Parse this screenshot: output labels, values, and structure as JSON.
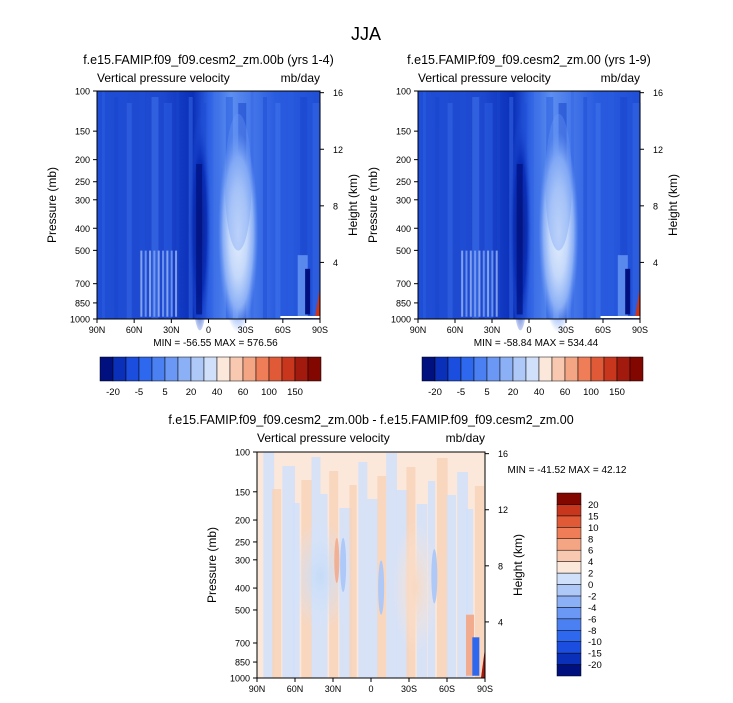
{
  "figure": {
    "title": "JJA"
  },
  "chart_data": [
    {
      "type": "heatmap",
      "title": "f.e15.FAMIP.f09_f09.cesm2_zm.00b (yrs 1-4)",
      "subtitle_left": "Vertical pressure velocity",
      "subtitle_right": "mb/day",
      "ylabel": "Pressure (mb)",
      "ylabel_right": "Height (km)",
      "x_tick_labels": [
        "90N",
        "60N",
        "30N",
        "0",
        "30S",
        "60S",
        "90S"
      ],
      "y_tick_labels": [
        "100",
        "150",
        "200",
        "250",
        "300",
        "400",
        "500",
        "700",
        "850",
        "1000"
      ],
      "y_ticks": [
        100,
        150,
        200,
        250,
        300,
        400,
        500,
        700,
        850,
        1000
      ],
      "ylim": [
        1000,
        100
      ],
      "xlim": [
        90,
        -90
      ],
      "y_scale": "log",
      "right_axis_ticks": [
        4,
        8,
        12,
        16
      ],
      "right_axis_labels": [
        "4",
        "8",
        "12",
        "16"
      ],
      "stats": "MIN = -56.55  MAX = 576.56",
      "colorbar": {
        "orientation": "horizontal",
        "labels": [
          "-20",
          "-5",
          "5",
          "20",
          "40",
          "60",
          "100",
          "150"
        ],
        "colors": [
          "#00107f",
          "#0a2fb8",
          "#1b4ede",
          "#2e68ee",
          "#4a80f2",
          "#6a98f4",
          "#8cb0f6",
          "#aec8f8",
          "#d0e0fb",
          "#fbe8db",
          "#f8c9b0",
          "#f4a583",
          "#ef7d58",
          "#e05a38",
          "#c7361d",
          "#a21a0e",
          "#820700"
        ]
      }
    },
    {
      "type": "heatmap",
      "title": "f.e15.FAMIP.f09_f09.cesm2_zm.00 (yrs 1-9)",
      "subtitle_left": "Vertical pressure velocity",
      "subtitle_right": "mb/day",
      "ylabel": "Pressure (mb)",
      "ylabel_right": "Height (km)",
      "x_tick_labels": [
        "90N",
        "60N",
        "30N",
        "0",
        "30S",
        "60S",
        "90S"
      ],
      "y_tick_labels": [
        "100",
        "150",
        "200",
        "250",
        "300",
        "400",
        "500",
        "700",
        "850",
        "1000"
      ],
      "y_ticks": [
        100,
        150,
        200,
        250,
        300,
        400,
        500,
        700,
        850,
        1000
      ],
      "ylim": [
        1000,
        100
      ],
      "xlim": [
        90,
        -90
      ],
      "y_scale": "log",
      "right_axis_ticks": [
        4,
        8,
        12,
        16
      ],
      "right_axis_labels": [
        "4",
        "8",
        "12",
        "16"
      ],
      "stats": "MIN = -58.84  MAX = 534.44",
      "colorbar": {
        "orientation": "horizontal",
        "labels": [
          "-20",
          "-5",
          "5",
          "20",
          "40",
          "60",
          "100",
          "150"
        ],
        "colors": [
          "#00107f",
          "#0a2fb8",
          "#1b4ede",
          "#2e68ee",
          "#4a80f2",
          "#6a98f4",
          "#8cb0f6",
          "#aec8f8",
          "#d0e0fb",
          "#fbe8db",
          "#f8c9b0",
          "#f4a583",
          "#ef7d58",
          "#e05a38",
          "#c7361d",
          "#a21a0e",
          "#820700"
        ]
      }
    },
    {
      "type": "heatmap",
      "title": "f.e15.FAMIP.f09_f09.cesm2_zm.00b - f.e15.FAMIP.f09_f09.cesm2_zm.00",
      "subtitle_left": "Vertical pressure velocity",
      "subtitle_right": "mb/day",
      "ylabel": "Pressure (mb)",
      "ylabel_right": "Height (km)",
      "x_tick_labels": [
        "90N",
        "60N",
        "30N",
        "0",
        "30S",
        "60S",
        "90S"
      ],
      "y_tick_labels": [
        "100",
        "150",
        "200",
        "250",
        "300",
        "400",
        "500",
        "700",
        "850",
        "1000"
      ],
      "y_ticks": [
        100,
        150,
        200,
        250,
        300,
        400,
        500,
        700,
        850,
        1000
      ],
      "ylim": [
        1000,
        100
      ],
      "xlim": [
        90,
        -90
      ],
      "y_scale": "log",
      "right_axis_ticks": [
        4,
        8,
        12,
        16
      ],
      "right_axis_labels": [
        "4",
        "8",
        "12",
        "16"
      ],
      "stats": "MIN = -41.52  MAX = 42.12",
      "colorbar": {
        "orientation": "vertical",
        "labels": [
          "-20",
          "-15",
          "-10",
          "-8",
          "-6",
          "-4",
          "-2",
          "0",
          "2",
          "4",
          "6",
          "8",
          "10",
          "15",
          "20"
        ],
        "colors": [
          "#00107f",
          "#0a2fb8",
          "#1b4ede",
          "#2e68ee",
          "#4a80f2",
          "#6a98f4",
          "#8cb0f6",
          "#aec8f8",
          "#d0e0fb",
          "#fbe8db",
          "#f8c9b0",
          "#f4a583",
          "#ef7d58",
          "#e05a38",
          "#c7361d",
          "#820700"
        ]
      }
    }
  ]
}
